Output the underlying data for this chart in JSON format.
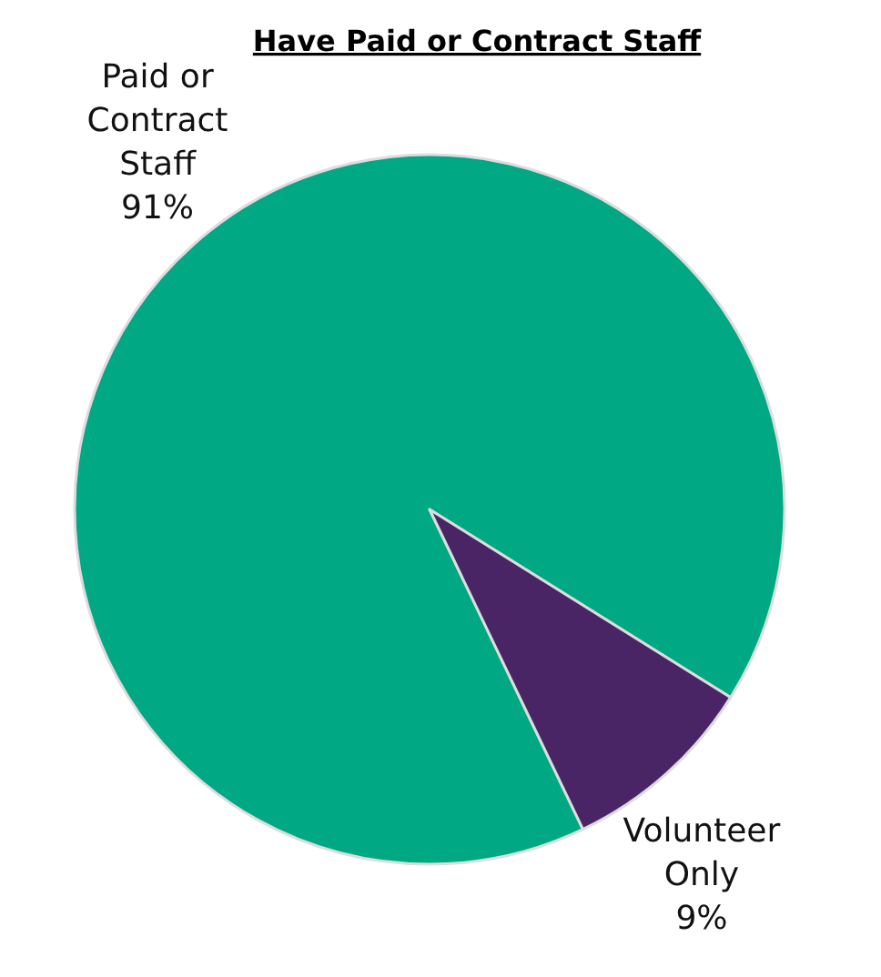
{
  "chart_data": {
    "type": "pie",
    "title": "Have Paid or Contract Staff",
    "categories": [
      "Paid or Contract Staff",
      "Volunteer Only"
    ],
    "values": [
      91,
      9
    ],
    "value_labels": [
      "91%",
      "9%"
    ],
    "colors": [
      "#00a884",
      "#4a2565"
    ]
  }
}
